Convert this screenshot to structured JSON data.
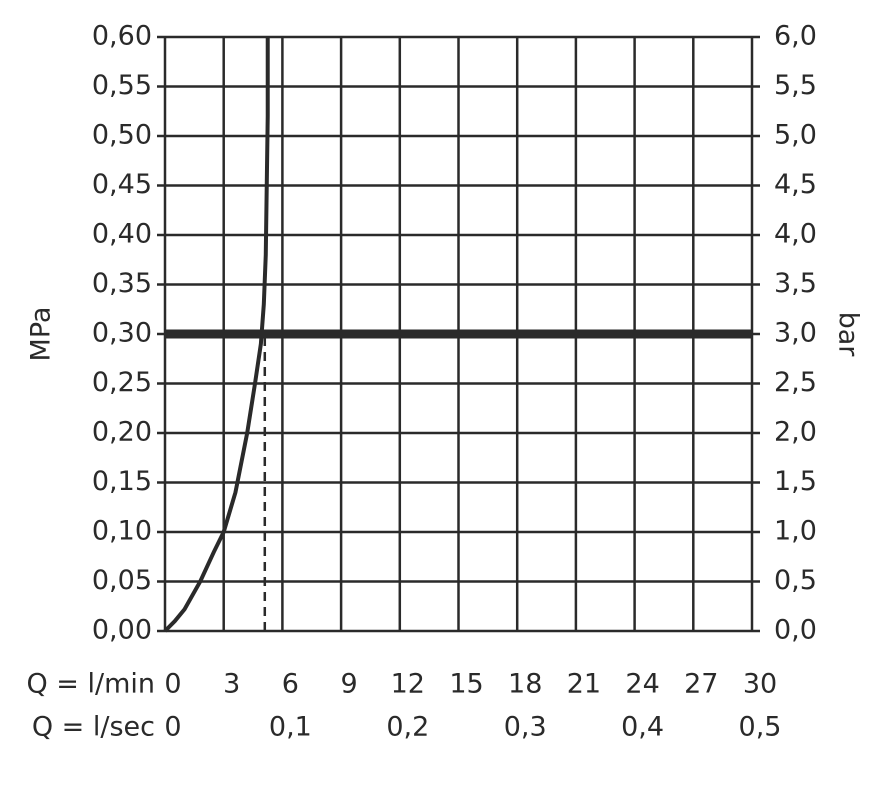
{
  "chart_data": {
    "type": "line",
    "ylabel": "MPa",
    "y2label": "bar",
    "xlabel": "Q = l/min",
    "x2label": "Q = l/sec",
    "xlim": [
      0,
      30
    ],
    "xticks": [
      0,
      3,
      6,
      9,
      12,
      15,
      18,
      21,
      24,
      27,
      30
    ],
    "x2lim": [
      0,
      0.5
    ],
    "x2ticks": [
      0,
      {
        "value": 0.1,
        "label": "0,1"
      },
      {
        "value": 0.2,
        "label": "0,2"
      },
      {
        "value": 0.3,
        "label": "0,3"
      },
      {
        "value": 0.4,
        "label": "0,4"
      },
      {
        "value": 0.5,
        "label": "0,5"
      }
    ],
    "ylim": [
      0,
      0.6
    ],
    "yticks": [
      {
        "value": 0,
        "label": "0,00"
      },
      {
        "value": 0.05,
        "label": "0,05"
      },
      {
        "value": 0.1,
        "label": "0,10"
      },
      {
        "value": 0.15,
        "label": "0,15"
      },
      {
        "value": 0.2,
        "label": "0,20"
      },
      {
        "value": 0.25,
        "label": "0,25"
      },
      {
        "value": 0.3,
        "label": "0,30"
      },
      {
        "value": 0.35,
        "label": "0,35"
      },
      {
        "value": 0.4,
        "label": "0,40"
      },
      {
        "value": 0.45,
        "label": "0,45"
      },
      {
        "value": 0.5,
        "label": "0,50"
      },
      {
        "value": 0.55,
        "label": "0,55"
      },
      {
        "value": 0.6,
        "label": "0,60"
      }
    ],
    "y2lim": [
      0,
      6
    ],
    "y2ticks": [
      {
        "value": 0,
        "label": "0,0"
      },
      {
        "value": 0.5,
        "label": "0,5"
      },
      {
        "value": 1,
        "label": "1,0"
      },
      {
        "value": 1.5,
        "label": "1,5"
      },
      {
        "value": 2,
        "label": "2,0"
      },
      {
        "value": 2.5,
        "label": "2,5"
      },
      {
        "value": 3,
        "label": "3,0"
      },
      {
        "value": 3.5,
        "label": "3,5"
      },
      {
        "value": 4,
        "label": "4,0"
      },
      {
        "value": 4.5,
        "label": "4,5"
      },
      {
        "value": 5,
        "label": "5,0"
      },
      {
        "value": 5.5,
        "label": "5,5"
      },
      {
        "value": 6,
        "label": "6,0"
      }
    ],
    "grid": true,
    "series": [
      {
        "color": "#2a2a2a",
        "x": [
          0,
          0.5,
          1,
          1.8,
          2.5,
          3,
          3.6,
          4.2,
          4.6,
          4.9,
          5.05,
          5.15,
          5.2,
          5.25,
          5.25
        ],
        "values": [
          0,
          0.01,
          0.022,
          0.05,
          0.08,
          0.1,
          0.14,
          0.2,
          0.25,
          0.29,
          0.33,
          0.38,
          0.45,
          0.52,
          0.6
        ]
      }
    ],
    "reference_line": {
      "y": 0.3,
      "color": "#2a2a2a"
    },
    "dashed_line": {
      "x": 5.1,
      "y": [
        0,
        0.3
      ]
    }
  }
}
